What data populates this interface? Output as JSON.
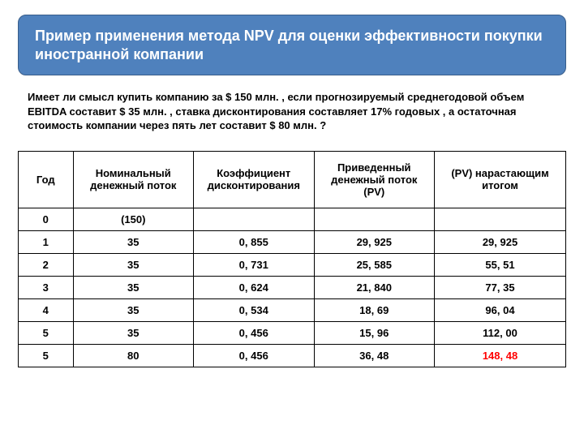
{
  "title": "Пример применения метода NPV для оценки эффективности  покупки иностранной компании",
  "body": "Имеет ли смысл купить компанию за $ 150 млн. ,  если прогнозируемый среднегодовой объем EBITDA составит  $ 35 млн. ,  ставка дисконтирования  составляет 17% годовых , а  остаточная стоимость компании через пять лет составит $ 80 млн. ?",
  "table": {
    "col_widths": [
      "10%",
      "22%",
      "22%",
      "22%",
      "24%"
    ],
    "headers": [
      "Год",
      "Номинальный денежный поток",
      "Коэффициент дисконтирования",
      "Приведенный денежный поток (PV)",
      "(PV) нарастающим итогом"
    ],
    "rows": [
      {
        "cells": [
          "0",
          "(150)",
          "",
          "",
          ""
        ],
        "highlight_last": false
      },
      {
        "cells": [
          "1",
          "35",
          "0, 855",
          "29, 925",
          "29, 925"
        ],
        "highlight_last": false
      },
      {
        "cells": [
          "2",
          "35",
          "0, 731",
          "25, 585",
          "55, 51"
        ],
        "highlight_last": false
      },
      {
        "cells": [
          "3",
          "35",
          "0, 624",
          "21, 840",
          "77, 35"
        ],
        "highlight_last": false
      },
      {
        "cells": [
          "4",
          "35",
          "0, 534",
          "18, 69",
          "96, 04"
        ],
        "highlight_last": false
      },
      {
        "cells": [
          "5",
          "35",
          "0, 456",
          "15, 96",
          "112, 00"
        ],
        "highlight_last": false
      },
      {
        "cells": [
          "5",
          "80",
          "0, 456",
          "36, 48",
          "148, 48"
        ],
        "highlight_last": true
      }
    ]
  },
  "colors": {
    "title_bg": "#4f81bd",
    "title_border": "#385d8a",
    "title_text": "#ffffff",
    "body_text": "#000000",
    "table_border": "#000000",
    "highlight": "#ff0000",
    "page_bg": "#ffffff"
  }
}
